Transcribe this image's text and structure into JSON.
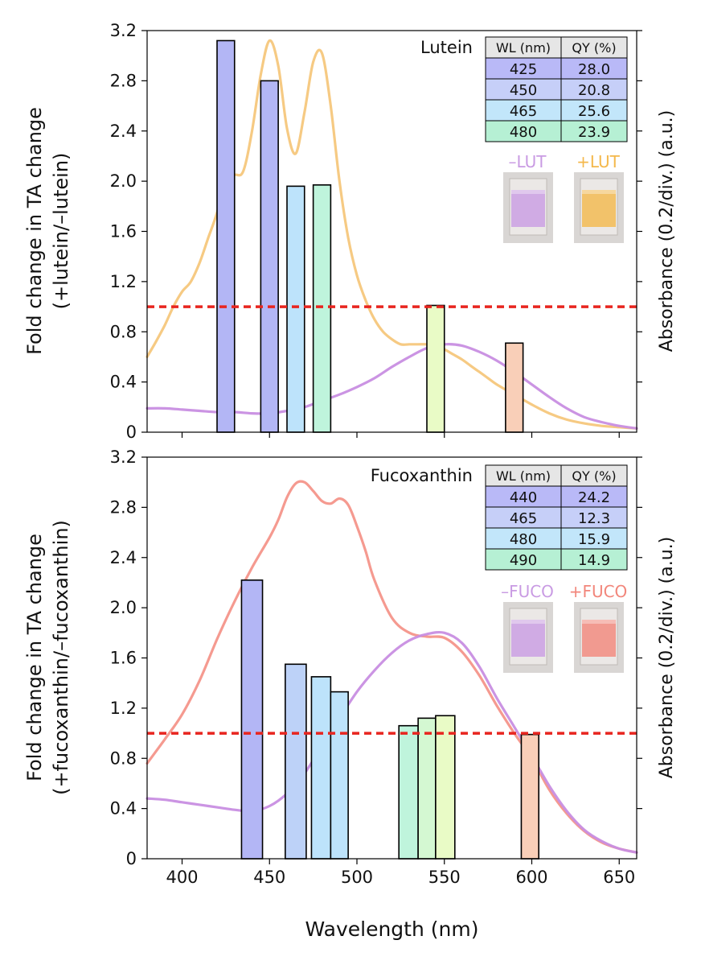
{
  "chart_data": [
    {
      "type": "bar",
      "title": "",
      "xlabel": "",
      "ylabel": "Fold change in TA change",
      "ylabel_sub": "(+lutein/–lutein)",
      "right_ylabel": "Absorbance (0.2/div.) (a.u.)",
      "xlim": [
        380,
        660
      ],
      "ylim": [
        0,
        3.2
      ],
      "yticks": [
        "0",
        "0.4",
        "0.8",
        "1.2",
        "1.6",
        "2.0",
        "2.4",
        "2.8",
        "3.2"
      ],
      "reference_line": 1.0,
      "pigment_label": "Lutein",
      "bars": [
        {
          "x0": 420,
          "x1": 430,
          "value": 3.12,
          "color": "#b3b6f5"
        },
        {
          "x0": 445,
          "x1": 455,
          "value": 2.8,
          "color": "#b3b6f5"
        },
        {
          "x0": 460,
          "x1": 470,
          "value": 1.96,
          "color": "#bde3fb"
        },
        {
          "x0": 475,
          "x1": 485,
          "value": 1.97,
          "color": "#bff4dc"
        },
        {
          "x0": 540,
          "x1": 550,
          "value": 1.01,
          "color": "#e9fbc6"
        },
        {
          "x0": 585,
          "x1": 595,
          "value": 0.71,
          "color": "#f9cfb8"
        }
      ],
      "curves": [
        {
          "name": "+lutein absorbance",
          "color": "#f6c77c",
          "x": [
            380,
            385,
            390,
            395,
            400,
            405,
            410,
            415,
            420,
            425,
            430,
            435,
            440,
            445,
            450,
            455,
            460,
            465,
            470,
            475,
            480,
            485,
            490,
            495,
            500,
            505,
            510,
            515,
            520,
            525,
            530,
            535,
            540,
            545,
            550,
            555,
            560,
            565,
            570,
            575,
            580,
            590,
            600,
            610,
            620,
            630,
            640,
            650,
            660
          ],
          "y": [
            0.6,
            0.72,
            0.85,
            1.0,
            1.12,
            1.2,
            1.35,
            1.55,
            1.75,
            2.02,
            2.05,
            2.08,
            2.4,
            2.85,
            3.12,
            2.92,
            2.42,
            2.22,
            2.55,
            2.95,
            3.02,
            2.6,
            2.0,
            1.55,
            1.25,
            1.05,
            0.9,
            0.8,
            0.74,
            0.7,
            0.7,
            0.7,
            0.7,
            0.69,
            0.66,
            0.62,
            0.58,
            0.53,
            0.48,
            0.43,
            0.38,
            0.3,
            0.22,
            0.15,
            0.1,
            0.07,
            0.05,
            0.04,
            0.03
          ]
        },
        {
          "name": "–lutein absorbance",
          "color": "#c88ee2",
          "x": [
            380,
            390,
            400,
            410,
            420,
            430,
            440,
            450,
            460,
            470,
            480,
            490,
            500,
            510,
            520,
            530,
            540,
            550,
            560,
            570,
            580,
            590,
            600,
            610,
            620,
            630,
            640,
            650,
            660
          ],
          "y": [
            0.19,
            0.19,
            0.18,
            0.17,
            0.16,
            0.16,
            0.15,
            0.15,
            0.17,
            0.2,
            0.25,
            0.3,
            0.36,
            0.43,
            0.52,
            0.6,
            0.67,
            0.7,
            0.69,
            0.64,
            0.57,
            0.48,
            0.38,
            0.28,
            0.19,
            0.12,
            0.08,
            0.05,
            0.03
          ]
        }
      ],
      "table": {
        "headers": [
          "WL (nm)",
          "QY (%)"
        ],
        "rows": [
          [
            "425",
            "28.0"
          ],
          [
            "450",
            "20.8"
          ],
          [
            "465",
            "25.6"
          ],
          [
            "480",
            "23.9"
          ]
        ],
        "row_colors": [
          "#b9b9f7",
          "#c6cff8",
          "#c2e6fa",
          "#b6f0d4"
        ]
      },
      "legend": {
        "minus_label": "–LUT",
        "minus_color": "#c99be3",
        "plus_label": "+LUT",
        "plus_color": "#f4b84b"
      }
    },
    {
      "type": "bar",
      "title": "",
      "xlabel": "Wavelength (nm)",
      "ylabel": "Fold change in TA change",
      "ylabel_sub": "(+fucoxanthin/–fucoxanthin)",
      "right_ylabel": "Absorbance (0.2/div.) (a.u.)",
      "xlim": [
        380,
        660
      ],
      "ylim": [
        0,
        3.2
      ],
      "yticks": [
        "0",
        "0.4",
        "0.8",
        "1.2",
        "1.6",
        "2.0",
        "2.4",
        "2.8",
        "3.2"
      ],
      "xticks": [
        "400",
        "450",
        "500",
        "550",
        "600",
        "650"
      ],
      "reference_line": 1.0,
      "pigment_label": "Fucoxanthin",
      "bars": [
        {
          "x0": 434,
          "x1": 446,
          "value": 2.22,
          "color": "#b3b6f5"
        },
        {
          "x0": 459,
          "x1": 471,
          "value": 1.55,
          "color": "#bdd2f8"
        },
        {
          "x0": 474,
          "x1": 485,
          "value": 1.45,
          "color": "#bde3fb"
        },
        {
          "x0": 485,
          "x1": 495,
          "value": 1.33,
          "color": "#bde3fb"
        },
        {
          "x0": 524,
          "x1": 535,
          "value": 1.06,
          "color": "#bff4dc"
        },
        {
          "x0": 535,
          "x1": 545,
          "value": 1.12,
          "color": "#d4f8d2"
        },
        {
          "x0": 545,
          "x1": 556,
          "value": 1.14,
          "color": "#e9fbc6"
        },
        {
          "x0": 594,
          "x1": 604,
          "value": 0.99,
          "color": "#f9cfb8"
        }
      ],
      "curves": [
        {
          "name": "+fucoxanthin absorbance",
          "color": "#f4958a",
          "x": [
            380,
            390,
            400,
            410,
            420,
            430,
            440,
            450,
            455,
            460,
            465,
            470,
            475,
            480,
            485,
            490,
            495,
            500,
            505,
            510,
            520,
            530,
            540,
            550,
            560,
            570,
            580,
            590,
            600,
            610,
            620,
            630,
            640,
            650,
            660
          ],
          "y": [
            0.76,
            0.95,
            1.15,
            1.42,
            1.75,
            2.05,
            2.32,
            2.56,
            2.7,
            2.88,
            2.99,
            3.0,
            2.93,
            2.85,
            2.83,
            2.87,
            2.82,
            2.65,
            2.45,
            2.22,
            1.92,
            1.8,
            1.77,
            1.76,
            1.65,
            1.46,
            1.22,
            1.0,
            0.8,
            0.55,
            0.36,
            0.22,
            0.13,
            0.08,
            0.05
          ]
        },
        {
          "name": "–fucoxanthin absorbance",
          "color": "#c88ee2",
          "x": [
            380,
            390,
            400,
            410,
            420,
            430,
            440,
            450,
            460,
            470,
            480,
            490,
            500,
            510,
            520,
            530,
            540,
            550,
            560,
            570,
            580,
            590,
            600,
            610,
            620,
            630,
            640,
            650,
            660
          ],
          "y": [
            0.48,
            0.47,
            0.45,
            0.43,
            0.41,
            0.39,
            0.38,
            0.42,
            0.52,
            0.68,
            0.9,
            1.12,
            1.33,
            1.5,
            1.64,
            1.74,
            1.79,
            1.8,
            1.72,
            1.53,
            1.28,
            1.05,
            0.82,
            0.58,
            0.38,
            0.23,
            0.14,
            0.08,
            0.05
          ]
        }
      ],
      "table": {
        "headers": [
          "WL (nm)",
          "QY (%)"
        ],
        "rows": [
          [
            "440",
            "24.2"
          ],
          [
            "465",
            "12.3"
          ],
          [
            "480",
            "15.9"
          ],
          [
            "490",
            "14.9"
          ]
        ],
        "row_colors": [
          "#b9b9f7",
          "#c6cff8",
          "#c2e6fa",
          "#b6f0d4"
        ]
      },
      "legend": {
        "minus_label": "–FUCO",
        "minus_color": "#c99be3",
        "plus_label": "+FUCO",
        "plus_color": "#f2867b"
      }
    }
  ]
}
